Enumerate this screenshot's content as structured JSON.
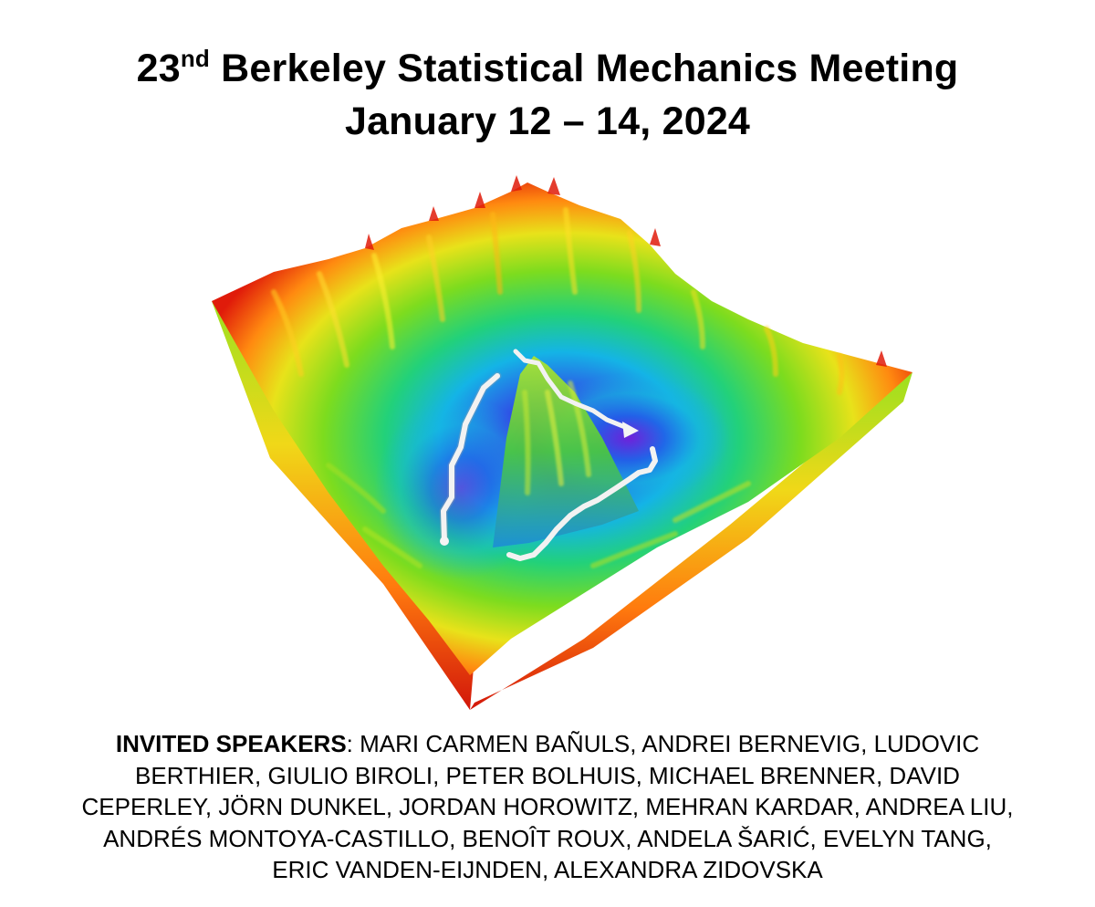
{
  "title": {
    "ordinal_number": "23",
    "ordinal_suffix": "nd",
    "name": "Berkeley Statistical Mechanics Meeting",
    "dates": "January 12 – 14, 2024"
  },
  "speakers": {
    "label": "INVITED SPEAKERS",
    "lines": [
      ": MARI CARMEN BAÑULS, ANDREI BERNEVIG, LUDOVIC",
      "BERTHIER, GIULIO BIROLI, PETER BOLHUIS, MICHAEL BRENNER, DAVID",
      "CEPERLEY, JÖRN DUNKEL, JORDAN HOROWITZ, MEHRAN KARDAR, ANDREA LIU,",
      "ANDRÉS MONTOYA-CASTILLO, BENOÎT ROUX, ANDELA ŠARIĆ, EVELYN TANG,",
      "ERIC VANDEN-EIJNDEN, ALEXANDRA ZIDOVSKA"
    ]
  },
  "colors": {
    "background": "#ffffff",
    "text": "#000000",
    "surface_high": "#e8200c",
    "surface_mid": "#6fd71e",
    "surface_low": "#1f7be8",
    "surface_min": "#7a1fd6",
    "path": "#f2f2f2"
  }
}
